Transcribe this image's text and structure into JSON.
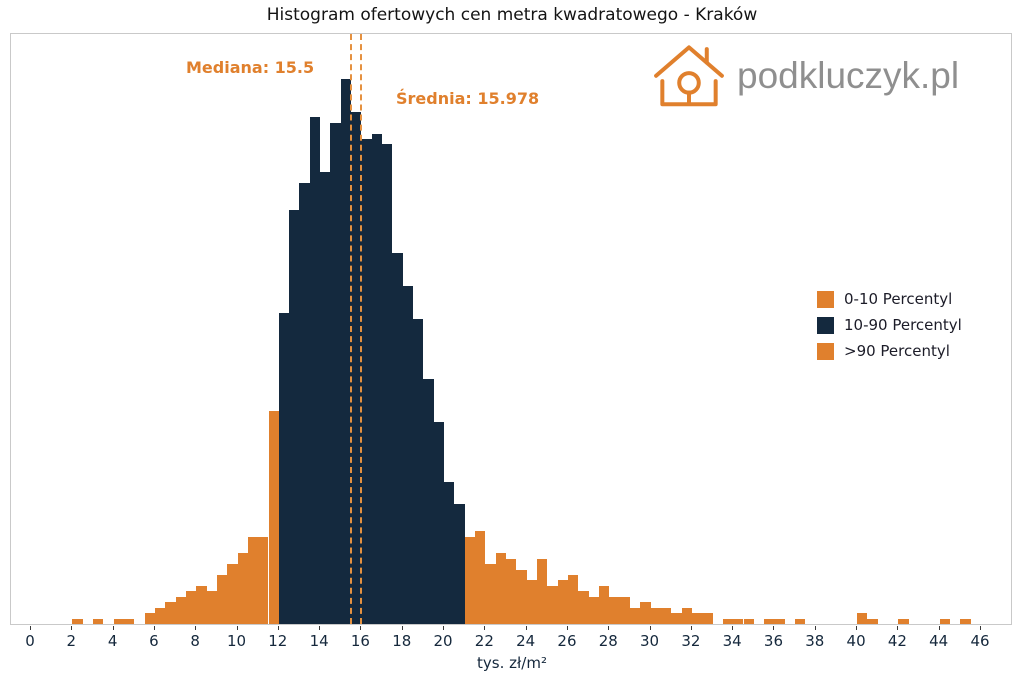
{
  "title": "Histogram ofertowych cen metra kwadratowego - Kraków",
  "watermark": {
    "text": "podkluczyk.pl"
  },
  "annotations": {
    "median_label": "Mediana: 15.5",
    "mean_label": "Średnia: 15.978"
  },
  "legend": [
    {
      "label": "0-10 Percentyl",
      "color": "#e0802d"
    },
    {
      "label": "10-90 Percentyl",
      "color": "#14293e"
    },
    {
      "label": ">90 Percentyl",
      "color": "#e0802d"
    }
  ],
  "chart_data": {
    "type": "bar",
    "title": "Histogram ofertowych cen metra kwadratowego - Kraków",
    "xlabel": "tys. zł/m²",
    "ylabel": "",
    "grid": false,
    "legend_position": "center-right",
    "x_range": [
      0,
      46
    ],
    "xticks": [
      0,
      2,
      4,
      6,
      8,
      10,
      12,
      14,
      16,
      18,
      20,
      22,
      24,
      26,
      28,
      30,
      32,
      34,
      36,
      38,
      40,
      42,
      44,
      46
    ],
    "bin_start": 0,
    "bin_width": 0.5,
    "median": 15.5,
    "mean": 15.978,
    "percentile_10_boundary": 12,
    "percentile_90_boundary": 21,
    "values_relative": [
      0,
      0,
      0,
      0,
      1,
      0,
      1,
      0,
      1,
      1,
      0,
      2,
      3,
      4,
      5,
      6,
      7,
      6,
      9,
      11,
      13,
      16,
      16,
      39,
      57,
      76,
      81,
      93,
      83,
      92,
      100,
      94,
      89,
      90,
      88,
      68,
      62,
      56,
      45,
      37,
      26,
      22,
      16,
      17,
      11,
      13,
      12,
      10,
      8,
      12,
      7,
      8,
      9,
      6,
      5,
      7,
      5,
      5,
      3,
      4,
      3,
      3,
      2,
      3,
      2,
      2,
      0,
      1,
      1,
      1,
      0,
      1,
      1,
      0,
      1,
      0,
      0,
      0,
      0,
      0,
      2,
      1,
      0,
      0,
      1,
      0,
      0,
      0,
      1,
      0,
      1,
      0
    ],
    "colors": {
      "tail": "#e0802d",
      "core": "#14293e",
      "median_line": "#e59140",
      "mean_line": "#e59140"
    }
  }
}
